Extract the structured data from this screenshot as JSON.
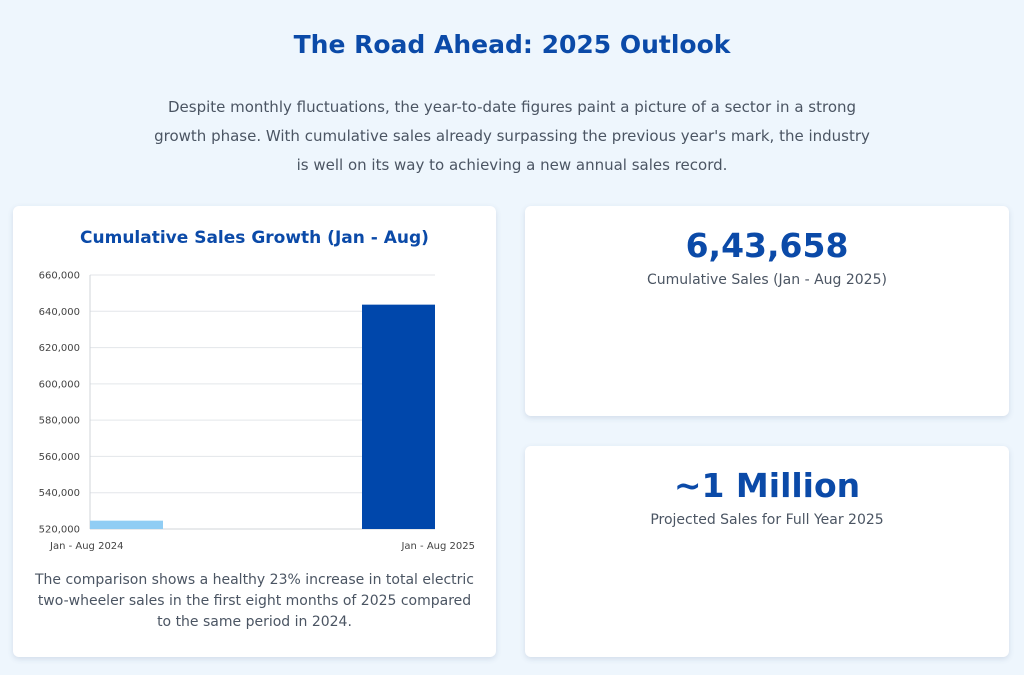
{
  "header": {
    "title": "The Road Ahead: 2025 Outlook",
    "intro": "Despite monthly fluctuations, the year-to-date figures paint a picture of a sector in a strong growth phase. With cumulative sales already surpassing the previous year's mark, the industry is well on its way to achieving a new annual sales record."
  },
  "chart_card": {
    "caption": "The comparison shows a healthy 23% increase in total electric two-wheeler sales in the first eight months of 2025 compared to the same period in 2024."
  },
  "stats": [
    {
      "value": "6,43,658",
      "label": "Cumulative Sales (Jan - Aug 2025)"
    },
    {
      "value": "~1 Million",
      "label": "Projected Sales for Full Year 2025"
    }
  ],
  "chart_data": {
    "type": "bar",
    "title": "Cumulative Sales Growth (Jan - Aug)",
    "categories": [
      "Jan - Aug 2024",
      "Jan - Aug 2025"
    ],
    "values": [
      524600,
      643658
    ],
    "colors": [
      "#90cdf4",
      "#0047ab"
    ],
    "ylim": [
      520000,
      660000
    ],
    "yticks": [
      520000,
      540000,
      560000,
      580000,
      600000,
      620000,
      640000,
      660000
    ],
    "ytick_labels": [
      "520,000",
      "540,000",
      "560,000",
      "580,000",
      "600,000",
      "620,000",
      "640,000",
      "660,000"
    ],
    "xlabel": "",
    "ylabel": "",
    "grid": true
  }
}
